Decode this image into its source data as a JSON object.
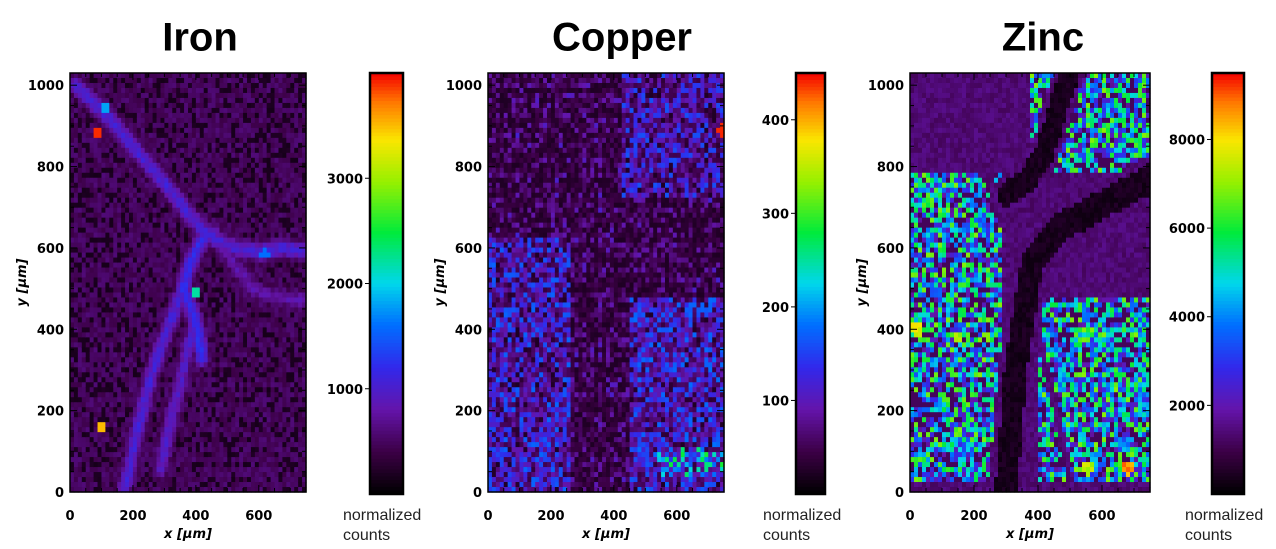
{
  "chart_data": [
    {
      "type": "heatmap",
      "title": "Iron",
      "xlabel": "x [µm]",
      "ylabel": "y [µm]",
      "xlim": [
        0,
        750
      ],
      "ylim": [
        0,
        1030
      ],
      "x_ticks": [
        0,
        200,
        400,
        600
      ],
      "y_ticks": [
        0,
        200,
        400,
        600,
        800,
        1000
      ],
      "colorbar": {
        "label": [
          "normalized",
          "counts"
        ],
        "ticks": [
          1000,
          2000,
          3000
        ],
        "range": [
          0,
          4000
        ]
      },
      "features": [
        {
          "kind": "ridge",
          "points": [
            [
              20,
              1000
            ],
            [
              110,
              930
            ],
            [
              210,
              840
            ],
            [
              300,
              760
            ],
            [
              380,
              680
            ],
            [
              440,
              630
            ],
            [
              520,
              600
            ],
            [
              600,
              590
            ],
            [
              680,
              600
            ],
            [
              750,
              590
            ]
          ],
          "value": 950
        },
        {
          "kind": "ridge",
          "points": [
            [
              420,
              620
            ],
            [
              380,
              560
            ],
            [
              360,
              500
            ],
            [
              400,
              420
            ],
            [
              420,
              330
            ]
          ],
          "value": 1100
        },
        {
          "kind": "ridge",
          "points": [
            [
              360,
              500
            ],
            [
              300,
              380
            ],
            [
              260,
              290
            ],
            [
              220,
              170
            ],
            [
              190,
              60
            ],
            [
              170,
              0
            ]
          ],
          "value": 950
        },
        {
          "kind": "ridge",
          "points": [
            [
              400,
              420
            ],
            [
              370,
              340
            ],
            [
              350,
              260
            ],
            [
              320,
              180
            ],
            [
              290,
              60
            ]
          ],
          "value": 850
        },
        {
          "kind": "ridge",
          "points": [
            [
              460,
              640
            ],
            [
              520,
              560
            ],
            [
              580,
              500
            ],
            [
              650,
              480
            ],
            [
              750,
              470
            ]
          ],
          "value": 700
        },
        {
          "kind": "spot",
          "x": 400,
          "y": 495,
          "value": 2200
        },
        {
          "kind": "spot",
          "x": 110,
          "y": 940,
          "value": 1800
        },
        {
          "kind": "spot",
          "x": 90,
          "y": 885,
          "value": 3900
        },
        {
          "kind": "spot",
          "x": 100,
          "y": 160,
          "value": 3500
        },
        {
          "kind": "spot",
          "x": 620,
          "y": 585,
          "value": 1600
        }
      ]
    },
    {
      "type": "heatmap",
      "title": "Copper",
      "xlabel": "x [µm]",
      "ylabel": "y [µm]",
      "xlim": [
        0,
        750
      ],
      "ylim": [
        0,
        1030
      ],
      "x_ticks": [
        0,
        200,
        400,
        600
      ],
      "y_ticks": [
        0,
        200,
        400,
        600,
        800,
        1000
      ],
      "colorbar": {
        "label": [
          "normalized",
          "counts"
        ],
        "ticks": [
          100,
          200,
          300,
          400
        ],
        "range": [
          0,
          450
        ]
      },
      "features": [
        {
          "kind": "region",
          "x": [
            0,
            260
          ],
          "y": [
            0,
            620
          ],
          "value": 140
        },
        {
          "kind": "region",
          "x": [
            450,
            750
          ],
          "y": [
            0,
            480
          ],
          "value": 145
        },
        {
          "kind": "region",
          "x": [
            420,
            750
          ],
          "y": [
            720,
            1030
          ],
          "value": 130
        },
        {
          "kind": "region",
          "x": [
            540,
            750
          ],
          "y": [
            40,
            110
          ],
          "value": 230
        },
        {
          "kind": "spot",
          "x": 745,
          "y": 890,
          "value": 440
        }
      ]
    },
    {
      "type": "heatmap",
      "title": "Zinc",
      "xlabel": "x [µm]",
      "ylabel": "y [µm]",
      "xlim": [
        0,
        750
      ],
      "ylim": [
        0,
        1030
      ],
      "x_ticks": [
        0,
        200,
        400,
        600
      ],
      "y_ticks": [
        0,
        200,
        400,
        600,
        800,
        1000
      ],
      "colorbar": {
        "label": [
          "normalized",
          "counts"
        ],
        "ticks": [
          2000,
          4000,
          6000,
          8000
        ],
        "range": [
          0,
          9500
        ]
      },
      "features": [
        {
          "kind": "region",
          "x": [
            0,
            290
          ],
          "y": [
            20,
            780
          ],
          "value": 4400
        },
        {
          "kind": "region",
          "x": [
            380,
            750
          ],
          "y": [
            780,
            1030
          ],
          "value": 4000
        },
        {
          "kind": "region",
          "x": [
            400,
            750
          ],
          "y": [
            20,
            480
          ],
          "value": 4300
        },
        {
          "kind": "spot",
          "x": 680,
          "y": 60,
          "value": 9000
        },
        {
          "kind": "spot",
          "x": 560,
          "y": 60,
          "value": 7800
        },
        {
          "kind": "spot",
          "x": 20,
          "y": 400,
          "value": 8200
        },
        {
          "kind": "spot",
          "x": 150,
          "y": 380,
          "value": 7500
        }
      ]
    }
  ]
}
